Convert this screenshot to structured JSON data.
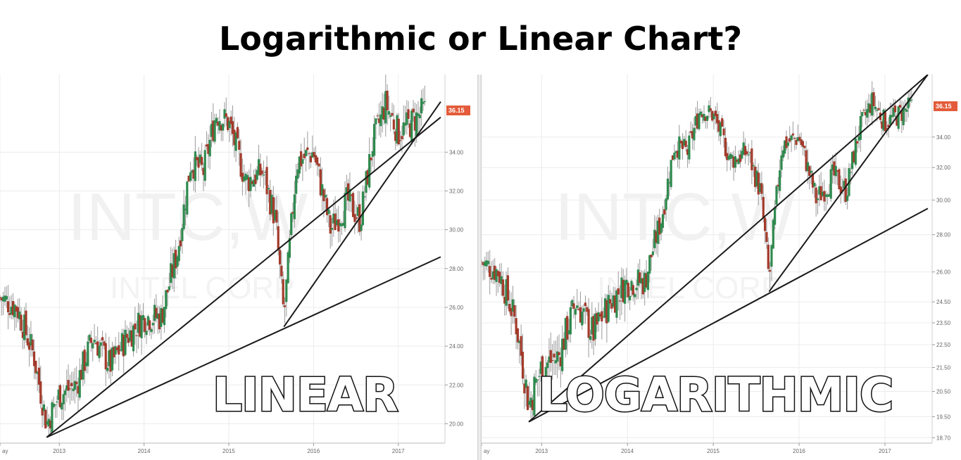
{
  "title": "Logarithmic or Linear Chart?",
  "colors": {
    "up": "#2f8a4e",
    "down": "#a33a2a",
    "wick": "#9a9a9a",
    "price_tag": "#e35b3a",
    "trendline": "#1a1a1a"
  },
  "chart_data": [
    {
      "type": "candlestick",
      "name": "linear",
      "overlay_label": "LINEAR",
      "watermark": "INTC,W",
      "watermark_sub": "INTEL CORP",
      "scale": "linear",
      "ylim": [
        19.0,
        38.0
      ],
      "y_ticks": [
        "20.00",
        "22.00",
        "24.00",
        "26.00",
        "28.00",
        "30.00",
        "32.00",
        "34.00"
      ],
      "last_price": "36.15",
      "x_ticks": [
        "ay",
        "2013",
        "2014",
        "2015",
        "2016",
        "2017"
      ],
      "x": [
        2012.3,
        2012.5,
        2012.7,
        2012.85,
        2013.0,
        2013.2,
        2013.4,
        2013.6,
        2013.8,
        2014.0,
        2014.2,
        2014.4,
        2014.55,
        2014.7,
        2014.85,
        2015.0,
        2015.2,
        2015.4,
        2015.55,
        2015.65,
        2015.8,
        2016.0,
        2016.2,
        2016.4,
        2016.55,
        2016.7,
        2016.85,
        2017.0,
        2017.15,
        2017.3
      ],
      "close": [
        26.5,
        26.0,
        23.5,
        20.0,
        21.5,
        22.0,
        24.5,
        23.0,
        24.5,
        25.5,
        25.5,
        29.0,
        33.5,
        33.0,
        36.0,
        35.5,
        32.5,
        33.0,
        30.5,
        25.5,
        33.5,
        34.0,
        30.0,
        31.5,
        30.5,
        34.5,
        36.5,
        35.0,
        35.5,
        36.15
      ],
      "trendlines": [
        {
          "from": [
            2012.85,
            19.3
          ],
          "to": [
            2017.5,
            35.8
          ]
        },
        {
          "from": [
            2012.85,
            19.3
          ],
          "to": [
            2017.5,
            28.6
          ]
        },
        {
          "from": [
            2015.65,
            25.0
          ],
          "to": [
            2017.5,
            36.6
          ]
        }
      ]
    },
    {
      "type": "candlestick",
      "name": "logarithmic",
      "overlay_label": "LOGARITHMIC",
      "watermark": "INTC,W",
      "watermark_sub": "INTEL CORP",
      "scale": "log",
      "ylim": [
        18.5,
        38.5
      ],
      "y_ticks": [
        "18.70",
        "19.50",
        "20.50",
        "21.50",
        "22.50",
        "23.50",
        "24.50",
        "26.00",
        "28.00",
        "30.00",
        "32.00",
        "34.00"
      ],
      "last_price": "36.15",
      "x_ticks": [
        "ay",
        "2013",
        "2014",
        "2015",
        "2016",
        "2017"
      ],
      "x": [
        2012.3,
        2012.5,
        2012.7,
        2012.85,
        2013.0,
        2013.2,
        2013.4,
        2013.6,
        2013.8,
        2014.0,
        2014.2,
        2014.4,
        2014.55,
        2014.7,
        2014.85,
        2015.0,
        2015.2,
        2015.4,
        2015.55,
        2015.65,
        2015.8,
        2016.0,
        2016.2,
        2016.4,
        2016.55,
        2016.7,
        2016.85,
        2017.0,
        2017.15,
        2017.3
      ],
      "close": [
        26.5,
        26.0,
        23.5,
        20.0,
        21.5,
        22.0,
        24.5,
        23.0,
        24.5,
        25.5,
        25.5,
        29.0,
        33.5,
        33.0,
        36.0,
        35.5,
        32.5,
        33.0,
        30.5,
        25.5,
        33.5,
        34.0,
        30.0,
        31.5,
        30.5,
        34.5,
        36.5,
        35.0,
        35.5,
        36.15
      ],
      "trendlines": [
        {
          "from": [
            2012.85,
            19.3
          ],
          "to": [
            2017.5,
            38.5
          ]
        },
        {
          "from": [
            2012.85,
            19.3
          ],
          "to": [
            2017.5,
            29.5
          ]
        },
        {
          "from": [
            2015.65,
            25.0
          ],
          "to": [
            2017.5,
            38.5
          ]
        }
      ]
    }
  ]
}
